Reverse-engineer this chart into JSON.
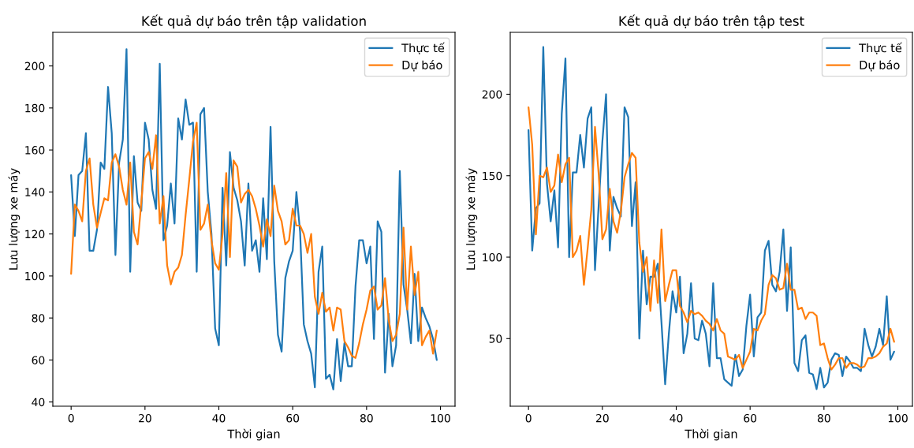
{
  "chart_data": [
    {
      "type": "line",
      "title": "Kết quả dự báo trên tập validation",
      "xlabel": "Thời gian",
      "ylabel": "Lưu lượng xe máy",
      "x": [
        0,
        1,
        2,
        3,
        4,
        5,
        6,
        7,
        8,
        9,
        10,
        11,
        12,
        13,
        14,
        15,
        16,
        17,
        18,
        19,
        20,
        21,
        22,
        23,
        24,
        25,
        26,
        27,
        28,
        29,
        30,
        31,
        32,
        33,
        34,
        35,
        36,
        37,
        38,
        39,
        40,
        41,
        42,
        43,
        44,
        45,
        46,
        47,
        48,
        49,
        50,
        51,
        52,
        53,
        54,
        55,
        56,
        57,
        58,
        59,
        60,
        61,
        62,
        63,
        64,
        65,
        66,
        67,
        68,
        69,
        70,
        71,
        72,
        73,
        74,
        75,
        76,
        77,
        78,
        79,
        80,
        81,
        82,
        83,
        84,
        85,
        86,
        87,
        88,
        89,
        90,
        91,
        92,
        93,
        94,
        95,
        96,
        97,
        98,
        99
      ],
      "series": [
        {
          "name": "Thực tế",
          "color": "#1f77b4",
          "values": [
            148,
            119,
            148,
            150,
            168,
            112,
            112,
            122,
            154,
            151,
            190,
            168,
            110,
            154,
            165,
            208,
            102,
            157,
            135,
            131,
            173,
            165,
            141,
            132,
            201,
            117,
            124,
            144,
            125,
            175,
            165,
            184,
            172,
            173,
            102,
            177,
            180,
            140,
            120,
            75,
            67,
            142,
            105,
            159,
            142,
            136,
            126,
            105,
            144,
            112,
            117,
            102,
            137,
            108,
            171,
            107,
            72,
            64,
            99,
            107,
            112,
            140,
            121,
            77,
            69,
            63,
            47,
            102,
            114,
            51,
            53,
            46,
            70,
            50,
            68,
            57,
            57,
            95,
            117,
            117,
            106,
            114,
            70,
            126,
            121,
            54,
            82,
            57,
            67,
            150,
            96,
            84,
            68,
            101,
            69,
            85,
            80,
            76,
            70,
            60
          ]
        },
        {
          "name": "Dự báo",
          "color": "#ff7f0e",
          "values": [
            101,
            134,
            131,
            126,
            150,
            156,
            134,
            123,
            130,
            137,
            136,
            154,
            158,
            152,
            141,
            134,
            154,
            121,
            115,
            135,
            156,
            159,
            151,
            167,
            125,
            138,
            105,
            96,
            102,
            104,
            110,
            129,
            146,
            164,
            173,
            122,
            125,
            134,
            117,
            106,
            103,
            120,
            149,
            109,
            155,
            152,
            135,
            139,
            141,
            138,
            132,
            124,
            114,
            127,
            119,
            143,
            131,
            126,
            115,
            117,
            132,
            124,
            124,
            120,
            111,
            120,
            90,
            82,
            92,
            83,
            85,
            74,
            85,
            84,
            69,
            66,
            62,
            61,
            68,
            77,
            84,
            93,
            95,
            84,
            86,
            99,
            79,
            69,
            72,
            82,
            123,
            84,
            114,
            91,
            102,
            67,
            71,
            74,
            63,
            74
          ]
        }
      ],
      "xlim": [
        -4.95,
        103.95
      ],
      "ylim": [
        38,
        216
      ],
      "xticks": [
        0,
        20,
        40,
        60,
        80,
        100
      ],
      "yticks": [
        40,
        60,
        80,
        100,
        120,
        140,
        160,
        180,
        200
      ],
      "legend": "top right"
    },
    {
      "type": "line",
      "title": "Kết quả dự báo trên tập test",
      "xlabel": "Thời gian",
      "ylabel": "Lưu lượng xe máy",
      "x": [
        0,
        1,
        2,
        3,
        4,
        5,
        6,
        7,
        8,
        9,
        10,
        11,
        12,
        13,
        14,
        15,
        16,
        17,
        18,
        19,
        20,
        21,
        22,
        23,
        24,
        25,
        26,
        27,
        28,
        29,
        30,
        31,
        32,
        33,
        34,
        35,
        36,
        37,
        38,
        39,
        40,
        41,
        42,
        43,
        44,
        45,
        46,
        47,
        48,
        49,
        50,
        51,
        52,
        53,
        54,
        55,
        56,
        57,
        58,
        59,
        60,
        61,
        62,
        63,
        64,
        65,
        66,
        67,
        68,
        69,
        70,
        71,
        72,
        73,
        74,
        75,
        76,
        77,
        78,
        79,
        80,
        81,
        82,
        83,
        84,
        85,
        86,
        87,
        88,
        89,
        90,
        91,
        92,
        93,
        94,
        95,
        96,
        97,
        98,
        99
      ],
      "series": [
        {
          "name": "Thực tế",
          "color": "#1f77b4",
          "values": [
            178,
            104,
            130,
            133,
            229,
            145,
            122,
            141,
            106,
            188,
            222,
            100,
            152,
            152,
            175,
            155,
            185,
            192,
            92,
            132,
            171,
            200,
            104,
            137,
            130,
            125,
            192,
            186,
            119,
            146,
            50,
            104,
            71,
            88,
            88,
            96,
            60,
            22,
            53,
            79,
            66,
            88,
            41,
            53,
            84,
            50,
            49,
            61,
            53,
            33,
            84,
            38,
            38,
            25,
            23,
            21,
            40,
            27,
            31,
            58,
            77,
            39,
            63,
            66,
            104,
            110,
            83,
            79,
            91,
            117,
            67,
            106,
            35,
            30,
            49,
            52,
            29,
            28,
            19,
            32,
            20,
            23,
            37,
            41,
            40,
            27,
            39,
            36,
            32,
            32,
            30,
            56,
            46,
            39,
            45,
            56,
            46,
            76,
            37,
            42
          ]
        },
        {
          "name": "Dự báo",
          "color": "#ff7f0e",
          "values": [
            192,
            169,
            114,
            150,
            149,
            155,
            140,
            144,
            163,
            146,
            157,
            161,
            100,
            104,
            113,
            83,
            105,
            129,
            180,
            151,
            111,
            117,
            142,
            122,
            115,
            128,
            149,
            157,
            164,
            161,
            109,
            91,
            100,
            67,
            98,
            72,
            117,
            73,
            83,
            92,
            92,
            70,
            66,
            60,
            67,
            65,
            66,
            64,
            61,
            59,
            55,
            62,
            55,
            53,
            39,
            38,
            37,
            40,
            32,
            37,
            42,
            56,
            55,
            61,
            65,
            83,
            89,
            87,
            80,
            81,
            96,
            80,
            80,
            68,
            69,
            62,
            66,
            66,
            64,
            46,
            47,
            38,
            31,
            34,
            38,
            38,
            32,
            35,
            35,
            34,
            32,
            33,
            38,
            38,
            39,
            41,
            45,
            47,
            56,
            48
          ]
        }
      ],
      "xlim": [
        -4.95,
        103.95
      ],
      "ylim": [
        8.5,
        238
      ],
      "xticks": [
        0,
        20,
        40,
        60,
        80,
        100
      ],
      "yticks": [
        50,
        100,
        150,
        200
      ],
      "legend": "top right"
    }
  ]
}
